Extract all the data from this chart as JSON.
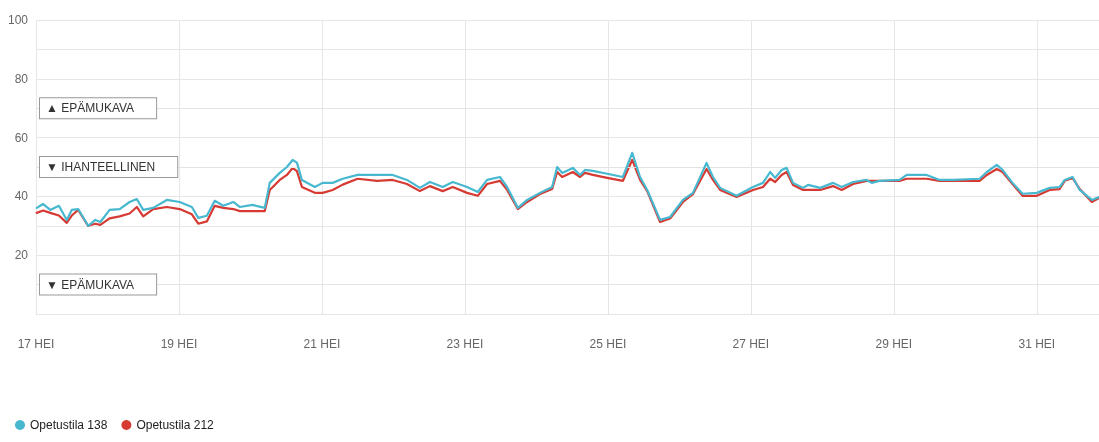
{
  "chart_data": {
    "type": "line",
    "x": [
      17.01,
      17.1,
      17.2,
      17.32,
      17.43,
      17.5,
      17.59,
      17.73,
      17.83,
      17.9,
      18.03,
      18.17,
      18.31,
      18.41,
      18.5,
      18.64,
      18.83,
      19.01,
      19.18,
      19.27,
      19.39,
      19.5,
      19.62,
      19.76,
      19.85,
      20.03,
      20.2,
      20.27,
      20.41,
      20.51,
      20.59,
      20.65,
      20.72,
      20.9,
      21.01,
      21.15,
      21.29,
      21.5,
      21.77,
      21.99,
      22.19,
      22.37,
      22.51,
      22.69,
      22.83,
      23.03,
      23.18,
      23.31,
      23.49,
      23.59,
      23.74,
      23.87,
      24.05,
      24.22,
      24.29,
      24.36,
      24.51,
      24.61,
      24.68,
      24.79,
      24.99,
      25.21,
      25.34,
      25.45,
      25.55,
      25.73,
      25.87,
      26.05,
      26.19,
      26.38,
      26.47,
      26.57,
      26.8,
      27.03,
      27.17,
      27.27,
      27.34,
      27.43,
      27.5,
      27.59,
      27.73,
      27.8,
      27.97,
      28.15,
      28.27,
      28.43,
      28.62,
      28.69,
      28.8,
      29.08,
      29.18,
      29.46,
      29.64,
      29.83,
      30.2,
      30.3,
      30.44,
      30.52,
      30.66,
      30.8,
      31.0,
      31.18,
      31.32,
      31.39,
      31.5,
      31.6,
      31.77,
      31.87
    ],
    "series": [
      {
        "name": "Opetustila 138",
        "color": "#47b8cf",
        "values": [
          36.1,
          37.4,
          35.4,
          36.8,
          32,
          35.4,
          35.7,
          30,
          32,
          31.3,
          35.4,
          35.7,
          38.1,
          39.1,
          35.4,
          36.1,
          38.8,
          38.1,
          36.4,
          32.7,
          33.4,
          38.5,
          36.8,
          38.1,
          36.4,
          37.1,
          36.1,
          44.6,
          48,
          50,
          52.4,
          51.5,
          45.6,
          43.2,
          44.6,
          44.6,
          46,
          47.3,
          47.3,
          47.3,
          45.6,
          42.9,
          44.9,
          43.2,
          44.9,
          43.2,
          41.5,
          45.6,
          46.6,
          43.2,
          36.1,
          38.8,
          41.2,
          43.2,
          50,
          48,
          49.7,
          47.3,
          49,
          48.7,
          47.7,
          46.6,
          54.8,
          46.6,
          42.2,
          32,
          33,
          38.8,
          41.2,
          51.4,
          46.6,
          42.9,
          40.2,
          43.2,
          44.6,
          48.3,
          46.3,
          49,
          49.7,
          44.6,
          42.9,
          43.9,
          42.9,
          44.6,
          43.2,
          44.9,
          45.6,
          44.6,
          45.3,
          45.6,
          47.3,
          47.3,
          45.6,
          45.6,
          46,
          48.3,
          50.7,
          49,
          44.6,
          40.9,
          41.2,
          42.9,
          43.2,
          45.6,
          46.6,
          42.2,
          38.8,
          39.8
        ]
      },
      {
        "name": "Opetustila 212",
        "color": "#d63a33",
        "values": [
          34.4,
          35.2,
          34.4,
          33.5,
          31,
          33.5,
          35.4,
          30,
          30.7,
          30.3,
          32.5,
          33.2,
          34.2,
          36.4,
          33.2,
          35.7,
          36.4,
          35.7,
          33.9,
          30.7,
          31.5,
          36.8,
          36.1,
          35.7,
          35,
          35,
          35,
          42.2,
          45.6,
          47.3,
          49.7,
          48.6,
          43.2,
          41.2,
          41.2,
          42.2,
          44,
          46,
          45.3,
          45.6,
          44.2,
          41.8,
          43.5,
          41.8,
          43.2,
          41.2,
          40.2,
          44.2,
          45.3,
          42.2,
          35.7,
          38.1,
          40.8,
          42.5,
          48.3,
          46.6,
          48.3,
          46.6,
          48,
          47.3,
          46.3,
          45.3,
          52.4,
          45.6,
          41.8,
          31.3,
          32.5,
          38.1,
          40.8,
          49.3,
          45.6,
          42.2,
          39.8,
          42.2,
          43.2,
          46,
          44.9,
          47.3,
          48.3,
          43.9,
          42.2,
          42.2,
          42.2,
          43.5,
          42.2,
          44.2,
          45.3,
          45.3,
          45.3,
          45.3,
          46,
          46,
          45.3,
          45.3,
          45.3,
          47.3,
          49.3,
          48.3,
          44.2,
          40.2,
          40.2,
          42.2,
          42.5,
          45.3,
          46.3,
          42.5,
          38.1,
          39.5
        ]
      }
    ],
    "xlim": [
      17,
      31.87
    ],
    "xticks": [
      {
        "value": 17,
        "label": "17 HEI"
      },
      {
        "value": 19,
        "label": "19 HEI"
      },
      {
        "value": 21,
        "label": "21 HEI"
      },
      {
        "value": 23,
        "label": "23 HEI"
      },
      {
        "value": 25,
        "label": "25 HEI"
      },
      {
        "value": 27,
        "label": "27 HEI"
      },
      {
        "value": 29,
        "label": "29 HEI"
      },
      {
        "value": 31,
        "label": "31 HEI"
      }
    ],
    "ylim": [
      0,
      100
    ],
    "yticks": [
      {
        "value": 0,
        "label": null
      },
      20,
      {
        "value": 30,
        "label": null
      },
      40,
      60,
      80,
      {
        "value": 90,
        "label": null
      },
      100
    ],
    "ref_lines": [
      {
        "axis": "y",
        "value": 70,
        "label": "▲ EPÄMUKAVA",
        "color": "#e4e4e4"
      },
      {
        "axis": "y",
        "value": 50,
        "label": "▼ IHANTEELLINEN",
        "color": "#e4e4e4"
      },
      {
        "axis": "y",
        "value": 10,
        "label": "▼ EPÄMUKAVA",
        "color": "#e4e4e4"
      }
    ],
    "grid": true,
    "legend": "bottom left",
    "marker": "none",
    "line_style": "solid"
  }
}
